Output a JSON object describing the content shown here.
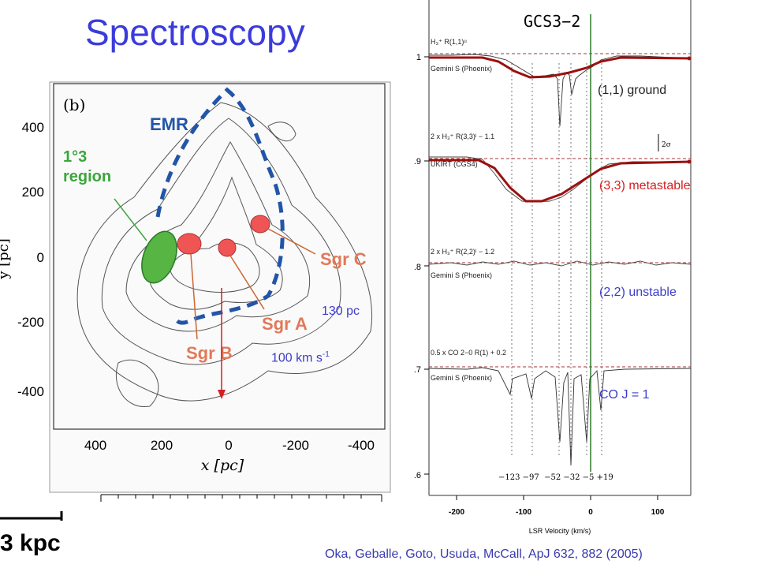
{
  "slide": {
    "title": "Spectroscopy",
    "citation": "Oka, Geballe, Goto, Usuda, McCall, ApJ 632, 882 (2005)",
    "scale_bar_label": "3 kpc",
    "distance_label": "130 pc",
    "velocity_label_main": "100 km s",
    "velocity_label_sup": "-1"
  },
  "map": {
    "panel_label": "(b)",
    "xlabel": "x [pc]",
    "ylabel": "y [pc]",
    "x_ticks": [
      "400",
      "200",
      "0",
      "-200",
      "-400"
    ],
    "y_ticks": [
      "400",
      "200",
      "0",
      "-200",
      "-400"
    ],
    "regions": {
      "emr": "EMR",
      "region_line1": "1°3",
      "region_line2": "region",
      "sgr_a": "Sgr A",
      "sgr_b": "Sgr B",
      "sgr_c": "Sgr C"
    }
  },
  "spectrum": {
    "title": "GCS3−2",
    "y_ticks": [
      "1",
      ".9",
      ".8",
      ".7",
      ".6"
    ],
    "x_ticks": [
      "-200",
      "-100",
      "0",
      "100"
    ],
    "xlabel": "LSR Velocity (km/s)",
    "velocity_markers": "−123 −97  −52 −32 −5 +19",
    "sigma_label": "2σ",
    "traces": [
      {
        "header": "H₃⁺ R(1,1)ᵘ",
        "instrument": "Gemini S (Phoenix)"
      },
      {
        "header": "2 x H₃⁺ R(3,3)ˡ − 1.1",
        "instrument": "UKIRT (CGS4)"
      },
      {
        "header": "2 x H₃⁺ R(2,2)ˡ − 1.2",
        "instrument": "Gemini S (Phoenix)"
      },
      {
        "header": "0.5 x CO 2−0 R(1) + 0.2",
        "instrument": "Gemini S (Phoenix)"
      }
    ],
    "annotations": {
      "ground": "(1,1) ground",
      "metastable": "(3,3) metastable",
      "unstable": "(2,2) unstable",
      "co": "CO J = 1"
    }
  },
  "colors": {
    "title": "#3b3bdc",
    "annotation_blue": "#3c3ccc",
    "annotation_red": "#d42020",
    "fit_curve": "#9b1010",
    "emr_dash": "#2255a8",
    "region_green": "#56b543",
    "sgr_red": "#ef5555"
  }
}
